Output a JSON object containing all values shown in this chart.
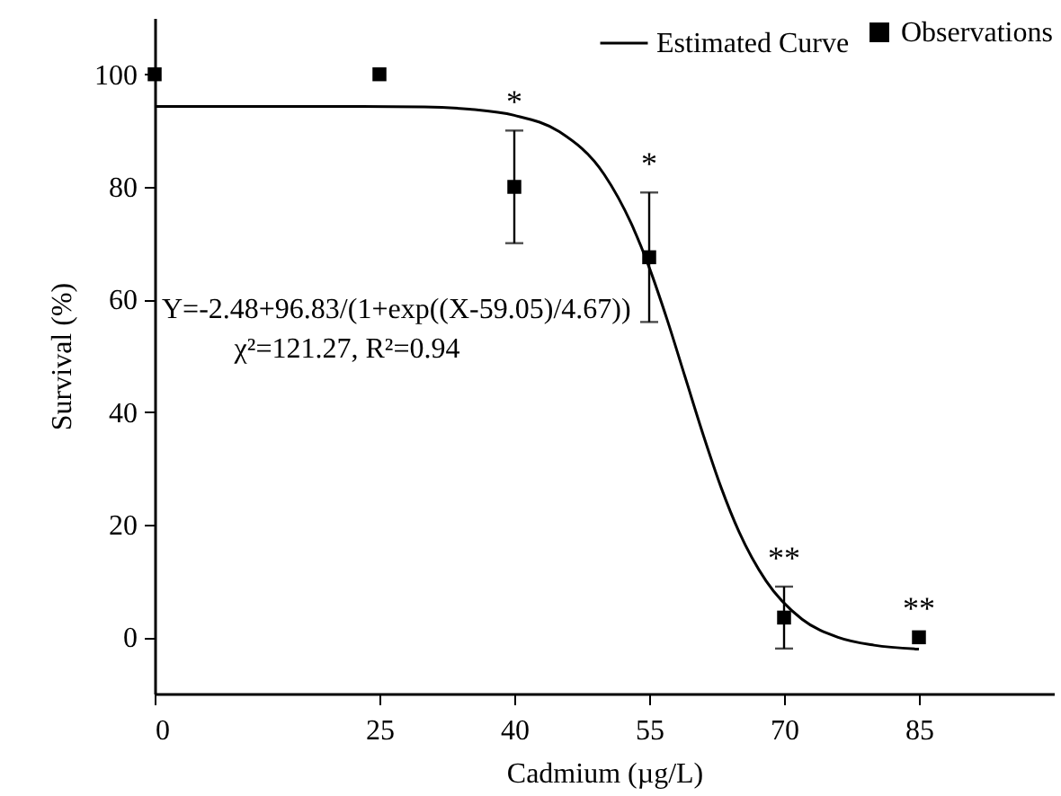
{
  "chart_data": {
    "type": "scatter",
    "xlabel": "Cadmium (µg/L)",
    "ylabel": "Survival (%)",
    "xlim": [
      0,
      100
    ],
    "ylim": [
      -10,
      110
    ],
    "xticks": [
      0,
      25,
      40,
      55,
      70,
      85
    ],
    "yticks": [
      0,
      20,
      40,
      60,
      80,
      100
    ],
    "legend": "top right",
    "series": [
      {
        "name": "Observations",
        "marker": "square",
        "color": "#000000",
        "x": [
          0,
          25,
          40,
          55,
          70,
          85
        ],
        "values": [
          100,
          100,
          80,
          67.5,
          3.5,
          0
        ],
        "errors": [
          null,
          null,
          10,
          11.5,
          5.5,
          null
        ]
      },
      {
        "name": "Estimated Curve",
        "type": "line",
        "marker": "none",
        "line_style": "solid",
        "color": "#000000",
        "x": [
          0,
          20,
          30,
          35,
          40,
          45,
          50,
          53,
          55,
          57,
          59,
          61,
          63,
          65,
          68,
          72,
          76,
          80,
          85
        ],
        "values": [
          94.3,
          94.3,
          94.2,
          93.8,
          92.7,
          89.8,
          82.2,
          73.5,
          65.7,
          56.4,
          46.2,
          36.0,
          26.6,
          18.7,
          10.0,
          3.2,
          0.0,
          -1.4,
          -2.1
        ]
      }
    ],
    "annotations": [
      {
        "text": "*",
        "x": 40,
        "y": 80
      },
      {
        "text": "*",
        "x": 55,
        "y": 67.5
      },
      {
        "text": "**",
        "x": 70,
        "y": 3.5
      },
      {
        "text": "**",
        "x": 85,
        "y": 0
      },
      "Y=-2.48+96.83/(1+exp((X-59.05)/4.67))",
      "χ²=121.27, R²=0.94"
    ]
  }
}
